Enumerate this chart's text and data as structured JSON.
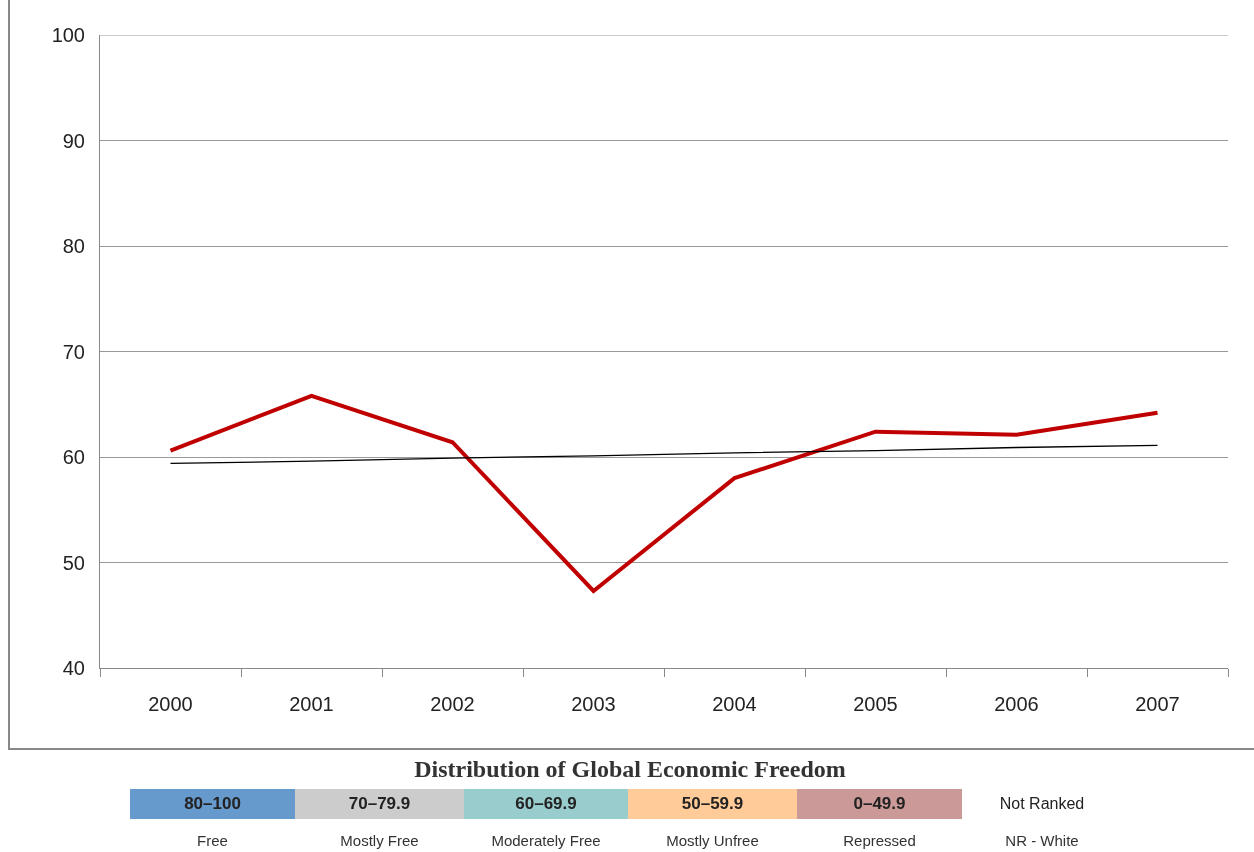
{
  "chart_data": {
    "type": "line",
    "categories": [
      "2000",
      "2001",
      "2002",
      "2003",
      "2004",
      "2005",
      "2006",
      "2007"
    ],
    "series": [
      {
        "color": "#c00000",
        "values": [
          60.6,
          65.8,
          61.4,
          47.3,
          58.0,
          62.4,
          62.1,
          64.2
        ]
      },
      {
        "type": "line",
        "color": "#000000",
        "values": [
          59.4,
          59.6,
          59.9,
          60.1,
          60.4,
          60.6,
          60.9,
          61.1
        ]
      }
    ],
    "ylim": [
      40,
      100
    ],
    "yticks": [
      40,
      50,
      60,
      70,
      80,
      90,
      100
    ],
    "grid": "y",
    "marker": "none",
    "line_style": "solid",
    "annotations": [
      "Distribution of Global Economic Freedom",
      "80–100",
      "Free",
      "70–79.9",
      "Mostly Free",
      "60–69.9",
      "Moderately Free",
      "50–59.9",
      "Mostly Unfree",
      "0–49.9",
      "Repressed",
      "Not Ranked",
      "NR - White"
    ]
  }
}
